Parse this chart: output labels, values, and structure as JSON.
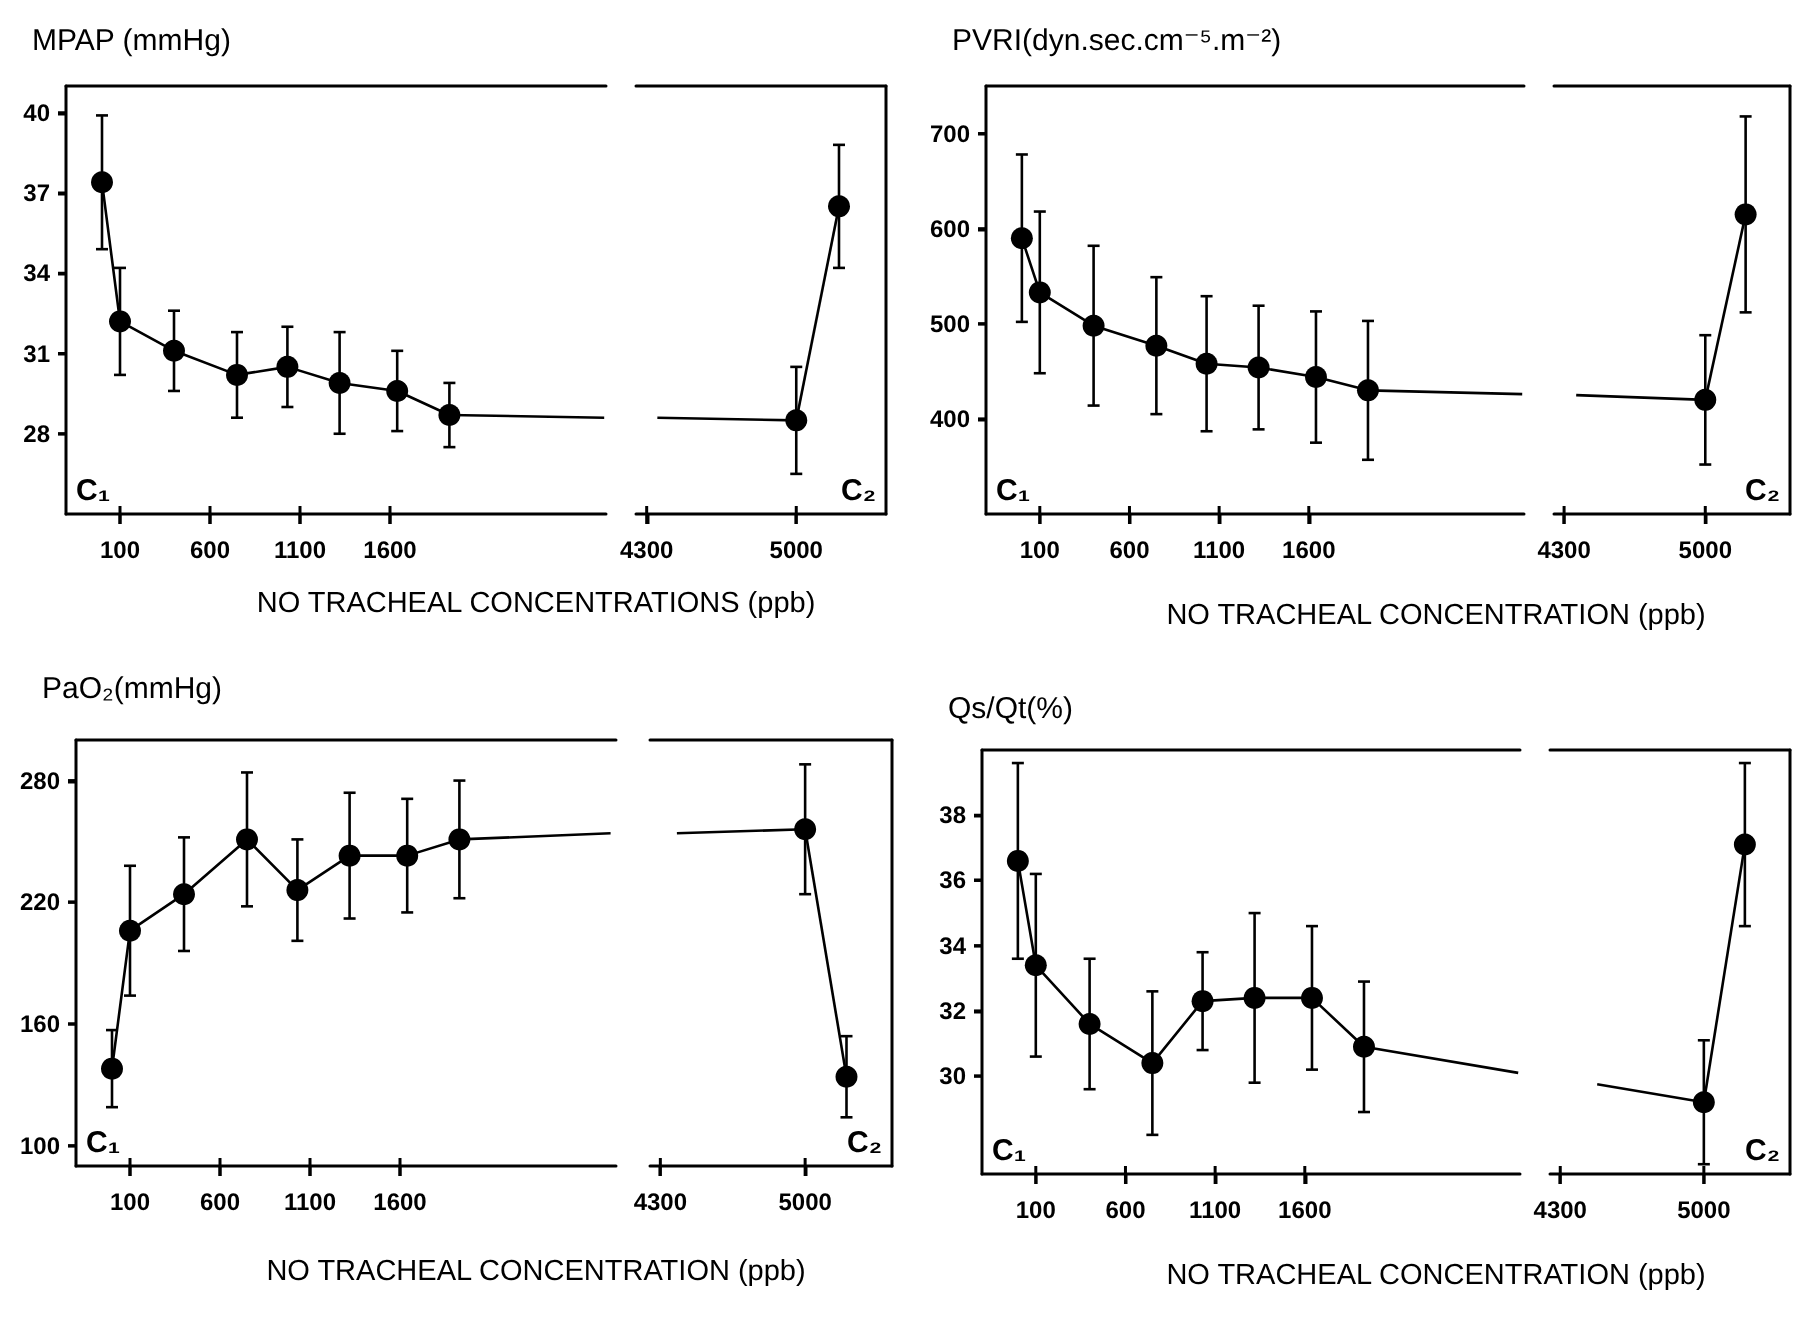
{
  "chart_data": [
    {
      "type": "line",
      "title": "MPAP (mmHg)",
      "xlabel": "NO TRACHEAL CONCENTRATIONS (ppb)",
      "marker": "circle",
      "x": [
        0,
        100,
        400,
        750,
        1030,
        1320,
        1640,
        1930
      ],
      "xlim": [
        -200,
        2800
      ],
      "xticks": [
        100,
        600,
        1100,
        1600
      ],
      "ylim": [
        25,
        41
      ],
      "yticks": [
        28,
        31,
        34,
        37,
        40
      ],
      "annotations": [
        "C₁"
      ],
      "series": [
        {
          "color": "#000000",
          "values": [
            37.4,
            32.2,
            31.1,
            30.2,
            30.5,
            29.9,
            29.6,
            28.7
          ],
          "errors": [
            2.5,
            2,
            1.5,
            1.6,
            1.5,
            1.9,
            1.5,
            1.2
          ]
        },
        {
          "color": "#000000",
          "marker": "none",
          "x": [
            1930,
            2790
          ],
          "values": [
            28.7,
            28.6
          ]
        }
      ]
    },
    {
      "type": "line",
      "marker": "circle",
      "x": [
        5000,
        5200
      ],
      "xlim": [
        4250,
        5420
      ],
      "xticks": [
        4300,
        5000
      ],
      "ylim": [
        25,
        41
      ],
      "tick_labels": "x",
      "annotations": [
        "C₂"
      ],
      "series": [
        {
          "color": "#000000",
          "values": [
            28.5,
            36.5
          ],
          "errors": [
            2,
            2.3
          ]
        },
        {
          "color": "#000000",
          "marker": "none",
          "x": [
            4350,
            5000
          ],
          "values": [
            28.6,
            28.5
          ]
        }
      ]
    },
    {
      "type": "line",
      "title": "PVRI(dyn.sec.cm⁻⁵.m⁻²)",
      "xlabel": "NO TRACHEAL CONCENTRATION (ppb)",
      "marker": "circle",
      "x": [
        0,
        100,
        400,
        750,
        1030,
        1320,
        1640,
        1930
      ],
      "xlim": [
        -200,
        2800
      ],
      "xticks": [
        100,
        600,
        1100,
        1600
      ],
      "ylim": [
        300,
        750
      ],
      "yticks": [
        400,
        500,
        600,
        700
      ],
      "annotations": [
        "C₁"
      ],
      "series": [
        {
          "color": "#000000",
          "values": [
            590,
            533,
            498,
            477,
            458,
            454,
            444,
            430
          ],
          "errors": [
            88,
            85,
            84,
            72,
            71,
            65,
            69,
            73
          ]
        },
        {
          "color": "#000000",
          "marker": "none",
          "x": [
            1930,
            2790
          ],
          "values": [
            430,
            426
          ]
        }
      ]
    },
    {
      "type": "line",
      "marker": "circle",
      "x": [
        5000,
        5200
      ],
      "xlim": [
        4250,
        5420
      ],
      "xticks": [
        4300,
        5000
      ],
      "ylim": [
        300,
        750
      ],
      "tick_labels": "x",
      "annotations": [
        "C₂"
      ],
      "series": [
        {
          "color": "#000000",
          "values": [
            420,
            615
          ],
          "errors": [
            68,
            103
          ]
        },
        {
          "color": "#000000",
          "marker": "none",
          "x": [
            4360,
            5000
          ],
          "values": [
            425,
            420
          ]
        }
      ]
    },
    {
      "type": "line",
      "title": "PaO₂(mmHg)",
      "xlabel": "NO TRACHEAL CONCENTRATION (ppb)",
      "marker": "circle",
      "x": [
        0,
        100,
        400,
        750,
        1030,
        1320,
        1640,
        1930
      ],
      "xlim": [
        -200,
        2800
      ],
      "xticks": [
        100,
        600,
        1100,
        1600
      ],
      "ylim": [
        90,
        300
      ],
      "yticks": [
        100,
        160,
        220,
        280
      ],
      "annotations": [
        "C₁"
      ],
      "series": [
        {
          "color": "#000000",
          "values": [
            138,
            206,
            224,
            251,
            226,
            243,
            243,
            251
          ],
          "errors": [
            19,
            32,
            28,
            33,
            25,
            31,
            28,
            29
          ]
        },
        {
          "color": "#000000",
          "marker": "none",
          "x": [
            1930,
            2770
          ],
          "values": [
            251,
            254
          ]
        }
      ]
    },
    {
      "type": "line",
      "marker": "circle",
      "x": [
        5000,
        5200
      ],
      "xlim": [
        4250,
        5420
      ],
      "xticks": [
        4300,
        5000
      ],
      "ylim": [
        90,
        300
      ],
      "tick_labels": "x",
      "annotations": [
        "C₂"
      ],
      "series": [
        {
          "color": "#000000",
          "values": [
            256,
            134
          ],
          "errors": [
            32,
            20
          ]
        },
        {
          "color": "#000000",
          "marker": "none",
          "x": [
            4380,
            5000
          ],
          "values": [
            254,
            256
          ]
        }
      ]
    },
    {
      "type": "line",
      "title": "Qs/Qt(%)",
      "xlabel": "NO TRACHEAL CONCENTRATION (ppb)",
      "marker": "circle",
      "x": [
        0,
        100,
        400,
        750,
        1030,
        1320,
        1640,
        1930
      ],
      "xlim": [
        -200,
        2800
      ],
      "xticks": [
        100,
        600,
        1100,
        1600
      ],
      "ylim": [
        27,
        40
      ],
      "yticks": [
        30,
        32,
        34,
        36,
        38
      ],
      "annotations": [
        "C₁"
      ],
      "series": [
        {
          "color": "#000000",
          "values": [
            36.6,
            33.4,
            31.6,
            30.4,
            32.3,
            32.4,
            32.4,
            30.9
          ],
          "errors": [
            3,
            2.8,
            2,
            2.2,
            1.5,
            2.6,
            2.2,
            2
          ]
        },
        {
          "color": "#000000",
          "marker": "none",
          "x": [
            1930,
            2790
          ],
          "values": [
            30.9,
            30.1
          ]
        }
      ]
    },
    {
      "type": "line",
      "marker": "circle",
      "x": [
        5000,
        5200
      ],
      "xlim": [
        4250,
        5420
      ],
      "xticks": [
        4300,
        5000
      ],
      "ylim": [
        27,
        40
      ],
      "tick_labels": "x",
      "annotations": [
        "C₂"
      ],
      "series": [
        {
          "color": "#000000",
          "values": [
            29.2,
            37.1
          ],
          "errors": [
            1.9,
            2.5
          ]
        },
        {
          "color": "#000000",
          "marker": "none",
          "x": [
            4480,
            5000
          ],
          "values": [
            29.75,
            29.2
          ]
        }
      ]
    }
  ]
}
